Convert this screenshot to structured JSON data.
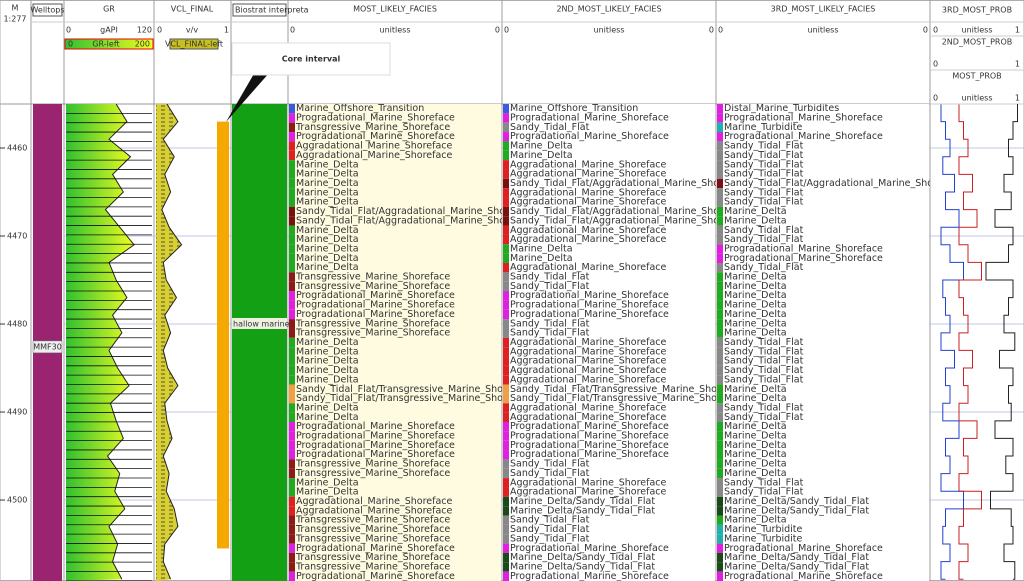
{
  "header": {
    "depth_unit": "M",
    "scale": "1:277"
  },
  "depth": {
    "range": [
      4455,
      4509.2
    ],
    "ticks": [
      4460,
      4470,
      4480,
      4490,
      4500
    ],
    "curve_depths": [
      4455,
      4457,
      4459,
      4461,
      4463,
      4465,
      4467,
      4469,
      4471,
      4473,
      4475,
      4477,
      4479,
      4481,
      4483,
      4485,
      4487,
      4489,
      4491,
      4493,
      4495,
      4497,
      4499,
      4501,
      4503,
      4505,
      4507,
      4509
    ]
  },
  "tracks": {
    "welltops": {
      "title": "Welltops",
      "color": "#9b2470",
      "tops": [
        {
          "name": "MMF30",
          "depth": 4482.6
        }
      ]
    },
    "gr": {
      "title": "GR",
      "unit": "gAPI",
      "range": [
        0,
        120
      ],
      "fill_label": "GR-left",
      "fill_range": [
        0,
        200
      ],
      "values": [
        70,
        85,
        60,
        90,
        65,
        80,
        55,
        75,
        95,
        60,
        70,
        85,
        65,
        78,
        60,
        72,
        88,
        62,
        70,
        80,
        58,
        75,
        68,
        82,
        60,
        72,
        65,
        78
      ]
    },
    "vcl": {
      "title": "VCL_FINAL",
      "unit": "v/v",
      "range": [
        0,
        1
      ],
      "fill_label": "VCL_FINAL-left",
      "color": "#c8c020",
      "values": [
        0.15,
        0.3,
        0.1,
        0.25,
        0.12,
        0.2,
        0.08,
        0.18,
        0.35,
        0.1,
        0.14,
        0.28,
        0.12,
        0.2,
        0.1,
        0.16,
        0.3,
        0.12,
        0.15,
        0.22,
        0.1,
        0.18,
        0.14,
        0.25,
        0.3,
        0.12,
        0.1,
        0.2
      ]
    },
    "biostrat": {
      "title": "Biostrat interpreta",
      "zone": "hallow marine",
      "color": "#14a014"
    },
    "facies": [
      {
        "title": "MOST_LIKELY_FACIES",
        "unit": "unitless",
        "range": [
          0,
          0
        ],
        "background": "#fffbe0",
        "rows": [
          "Marine_Offshore_Transition",
          "Progradational_Marine_Shoreface",
          "Transgressive_Marine_Shoreface",
          "Progradational_Marine_Shoreface",
          "Aggradational_Marine_Shoreface",
          "Aggradational_Marine_Shoreface",
          "Marine_Delta",
          "Marine_Delta",
          "Marine_Delta",
          "Marine_Delta",
          "Marine_Delta",
          "Sandy_Tidal_Flat/Aggradational_Marine_Shoreface",
          "Sandy_Tidal_Flat/Aggradational_Marine_Shoreface",
          "Marine_Delta",
          "Marine_Delta",
          "Marine_Delta",
          "Marine_Delta",
          "Marine_Delta",
          "Transgressive_Marine_Shoreface",
          "Transgressive_Marine_Shoreface",
          "Progradational_Marine_Shoreface",
          "Progradational_Marine_Shoreface",
          "Progradational_Marine_Shoreface",
          "Transgressive_Marine_Shoreface",
          "Transgressive_Marine_Shoreface",
          "Marine_Delta",
          "Marine_Delta",
          "Marine_Delta",
          "Marine_Delta",
          "Marine_Delta",
          "Sandy_Tidal_Flat/Transgressive_Marine_Shoreface",
          "Sandy_Tidal_Flat/Transgressive_Marine_Shoreface",
          "Marine_Delta",
          "Marine_Delta",
          "Progradational_Marine_Shoreface",
          "Progradational_Marine_Shoreface",
          "Progradational_Marine_Shoreface",
          "Progradational_Marine_Shoreface",
          "Transgressive_Marine_Shoreface",
          "Transgressive_Marine_Shoreface",
          "Marine_Delta",
          "Marine_Delta",
          "Aggradational_Marine_Shoreface",
          "Aggradational_Marine_Shoreface",
          "Transgressive_Marine_Shoreface",
          "Transgressive_Marine_Shoreface",
          "Transgressive_Marine_Shoreface",
          "Progradational_Marine_Shoreface",
          "Transgressive_Marine_Shoreface",
          "Transgressive_Marine_Shoreface",
          "Progradational_Marine_Shoreface"
        ]
      },
      {
        "title": "2ND_MOST_LIKELY_FACIES",
        "unit": "unitless",
        "range": [
          0,
          0
        ],
        "background": "#ffffff",
        "rows": [
          "Marine_Offshore_Transition",
          "Progradational_Marine_Shoreface",
          "Sandy_Tidal_Flat",
          "Progradational_Marine_Shoreface",
          "Marine_Delta",
          "Marine_Delta",
          "Aggradational_Marine_Shoreface",
          "Aggradational_Marine_Shoreface",
          "Sandy_Tidal_Flat/Aggradational_Marine_Shoreface",
          "Aggradational_Marine_Shoreface",
          "Aggradational_Marine_Shoreface",
          "Sandy_Tidal_Flat/Aggradational_Marine_Shoreface",
          "Sandy_Tidal_Flat/Aggradational_Marine_Shoreface",
          "Aggradational_Marine_Shoreface",
          "Aggradational_Marine_Shoreface",
          "Marine_Delta",
          "Marine_Delta",
          "Aggradational_Marine_Shoreface",
          "Sandy_Tidal_Flat",
          "Sandy_Tidal_Flat",
          "Progradational_Marine_Shoreface",
          "Progradational_Marine_Shoreface",
          "Progradational_Marine_Shoreface",
          "Sandy_Tidal_Flat",
          "Sandy_Tidal_Flat",
          "Aggradational_Marine_Shoreface",
          "Aggradational_Marine_Shoreface",
          "Aggradational_Marine_Shoreface",
          "Aggradational_Marine_Shoreface",
          "Aggradational_Marine_Shoreface",
          "Sandy_Tidal_Flat/Transgressive_Marine_Shoreface",
          "Sandy_Tidal_Flat/Transgressive_Marine_Shoreface",
          "Aggradational_Marine_Shoreface",
          "Aggradational_Marine_Shoreface",
          "Progradational_Marine_Shoreface",
          "Progradational_Marine_Shoreface",
          "Progradational_Marine_Shoreface",
          "Progradational_Marine_Shoreface",
          "Sandy_Tidal_Flat",
          "Sandy_Tidal_Flat",
          "Aggradational_Marine_Shoreface",
          "Aggradational_Marine_Shoreface",
          "Marine_Delta/Sandy_Tidal_Flat",
          "Marine_Delta/Sandy_Tidal_Flat",
          "Sandy_Tidal_Flat",
          "Sandy_Tidal_Flat",
          "Sandy_Tidal_Flat",
          "Progradational_Marine_Shoreface",
          "Marine_Delta/Sandy_Tidal_Flat",
          "Marine_Delta/Sandy_Tidal_Flat",
          "Progradational_Marine_Shoreface"
        ]
      },
      {
        "title": "3RD_MOST_LIKELY_FACIES",
        "unit": "unitless",
        "range": [
          0,
          0
        ],
        "background": "#ffffff",
        "rows": [
          "Distal_Marine_Turbidites",
          "Progradational_Marine_Shoreface",
          "Marine_Turbidite",
          "Progradational_Marine_Shoreface",
          "Sandy_Tidal_Flat",
          "Sandy_Tidal_Flat",
          "Sandy_Tidal_Flat",
          "Sandy_Tidal_Flat",
          "Sandy_Tidal_Flat/Aggradational_Marine_Shoreface",
          "Sandy_Tidal_Flat",
          "Sandy_Tidal_Flat",
          "Marine_Delta",
          "Marine_Delta",
          "Sandy_Tidal_Flat",
          "Sandy_Tidal_Flat",
          "Progradational_Marine_Shoreface",
          "Progradational_Marine_Shoreface",
          "Sandy_Tidal_Flat",
          "Marine_Delta",
          "Marine_Delta",
          "Marine_Delta",
          "Marine_Delta",
          "Marine_Delta",
          "Marine_Delta",
          "Marine_Delta",
          "Sandy_Tidal_Flat",
          "Sandy_Tidal_Flat",
          "Sandy_Tidal_Flat",
          "Sandy_Tidal_Flat",
          "Sandy_Tidal_Flat",
          "Marine_Delta",
          "Marine_Delta",
          "Sandy_Tidal_Flat",
          "Sandy_Tidal_Flat",
          "Marine_Delta",
          "Marine_Delta",
          "Marine_Delta",
          "Marine_Delta",
          "Marine_Delta",
          "Marine_Delta",
          "Sandy_Tidal_Flat",
          "Sandy_Tidal_Flat",
          "Marine_Delta/Sandy_Tidal_Flat",
          "Marine_Delta/Sandy_Tidal_Flat",
          "Marine_Delta",
          "Marine_Turbidite",
          "Marine_Turbidite",
          "Progradational_Marine_Shoreface",
          "Marine_Delta/Sandy_Tidal_Flat",
          "Marine_Delta/Sandy_Tidal_Flat",
          "Progradational_Marine_Shoreface"
        ]
      }
    ],
    "prob": {
      "series": [
        {
          "name": "3RD_MOST_PROB",
          "unit": "unitless",
          "range": [
            0,
            1
          ],
          "color": "#2040d0",
          "values": [
            0.1,
            0.15,
            0.2,
            0.12,
            0.25,
            0.15,
            0.3,
            0.1,
            0.2,
            0.35,
            0.12,
            0.15,
            0.2,
            0.1,
            0.25,
            0.15,
            0.2,
            0.12,
            0.3,
            0.15,
            0.2,
            0.1,
            0.35,
            0.15,
            0.12,
            0.2,
            0.1,
            0.15
          ]
        },
        {
          "name": "2ND_MOST_PROB",
          "range": [
            0,
            1
          ],
          "color": "#c82020",
          "values": [
            0.3,
            0.35,
            0.4,
            0.3,
            0.45,
            0.35,
            0.5,
            0.3,
            0.4,
            0.55,
            0.3,
            0.35,
            0.4,
            0.3,
            0.45,
            0.35,
            0.4,
            0.3,
            0.5,
            0.35,
            0.4,
            0.3,
            0.55,
            0.35,
            0.3,
            0.4,
            0.3,
            0.35
          ]
        },
        {
          "name": "MOST_PROB",
          "unit": "unitless",
          "range": [
            0,
            1
          ],
          "color": "#222222",
          "values": [
            0.95,
            0.9,
            0.85,
            0.9,
            0.8,
            0.88,
            0.7,
            0.9,
            0.85,
            0.6,
            0.9,
            0.85,
            0.8,
            0.92,
            0.75,
            0.9,
            0.85,
            0.88,
            0.7,
            0.9,
            0.82,
            0.9,
            0.65,
            0.88,
            0.9,
            0.8,
            0.92,
            0.9
          ]
        }
      ]
    }
  },
  "core_interval": {
    "label": "Core interval",
    "top": 4457.0,
    "base": 4505.5,
    "color": "#f5a800"
  },
  "facies_colors": {
    "Marine_Offshore_Transition": "#3b5bdb",
    "Progradational_Marine_Shoreface": "#e020e0",
    "Transgressive_Marine_Shoreface": "#8b1a1a",
    "Aggradational_Marine_Shoreface": "#e02020",
    "Marine_Delta": "#1faa1f",
    "Sandy_Tidal_Flat": "#888888",
    "Sandy_Tidal_Flat/Aggradational_Marine_Shoreface": "#7a1010",
    "Sandy_Tidal_Flat/Transgressive_Marine_Shoreface": "#f0a040",
    "Marine_Delta/Sandy_Tidal_Flat": "#1a4a1a",
    "Marine_Turbidite": "#20b0b0",
    "Distal_Marine_Turbidites": "#e020e0"
  }
}
